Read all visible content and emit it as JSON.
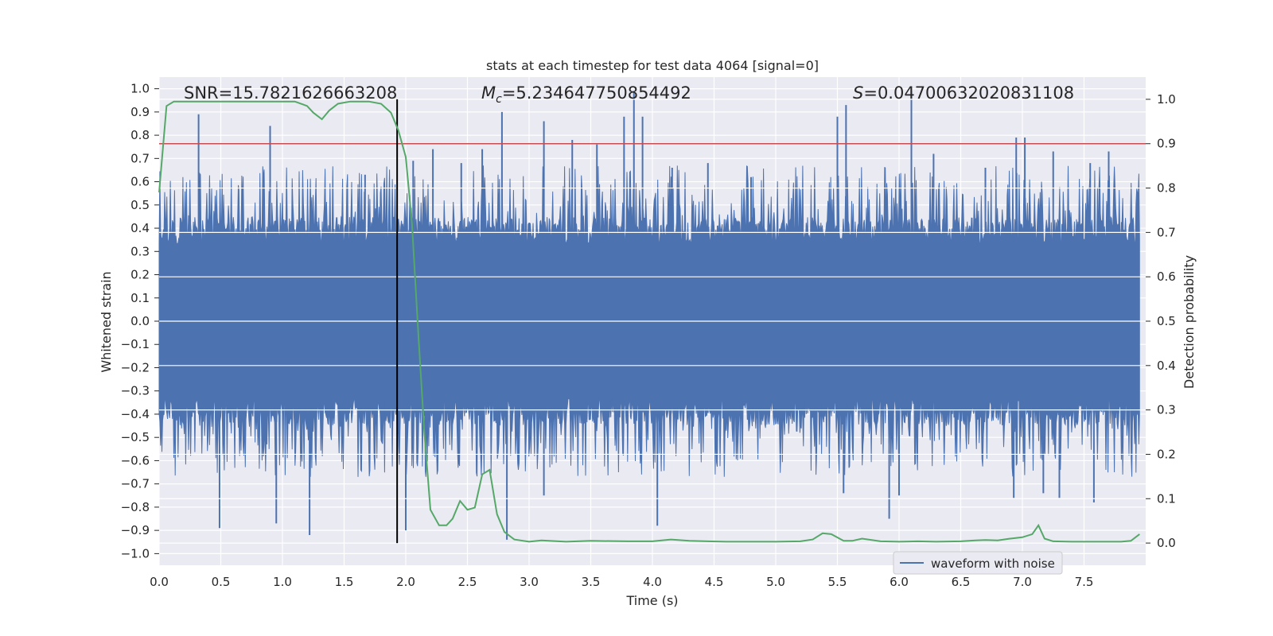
{
  "chart_data": {
    "type": "line",
    "title": "stats at each timestep for test data 4064 [signal=0]",
    "xlabel": "Time (s)",
    "ylabel_left": "Whitened strain",
    "ylabel_right": "Detection probability",
    "xlim": [
      0.0,
      8.0
    ],
    "ylim_left": [
      -1.05,
      1.05
    ],
    "ylim_right": [
      -0.05,
      1.05
    ],
    "xticks": [
      "0.0",
      "0.5",
      "1.0",
      "1.5",
      "2.0",
      "2.5",
      "3.0",
      "3.5",
      "4.0",
      "4.5",
      "5.0",
      "5.5",
      "6.0",
      "6.5",
      "7.0",
      "7.5"
    ],
    "yticks_left": [
      "1.0",
      "0.9",
      "0.8",
      "0.7",
      "0.6",
      "0.5",
      "0.4",
      "0.3",
      "0.2",
      "0.1",
      "0.0",
      "-0.1",
      "-0.2",
      "-0.3",
      "-0.4",
      "-0.5",
      "-0.6",
      "-0.7",
      "-0.8",
      "-0.9",
      "-1.0"
    ],
    "yticks_right": [
      "1.0",
      "0.9",
      "0.8",
      "0.7",
      "0.6",
      "0.5",
      "0.4",
      "0.3",
      "0.2",
      "0.1",
      "0.0"
    ],
    "annotations": {
      "snr": "SNR=15.7821626663208",
      "mc_symbol": "M",
      "mc_sub": "c",
      "mc_value": "=5.234647750854492",
      "s_symbol": "S",
      "s_value": "=0.04700632020831108"
    },
    "threshold_probability": 0.9,
    "detection_time": 1.93,
    "legend": {
      "label": "waveform with noise",
      "placement": "lower-right"
    },
    "colors": {
      "waveform": "#4c72b0",
      "probability": "#55a868",
      "threshold": "#c44e52",
      "marker": "#000000",
      "background": "#eaeaf2",
      "grid": "#ffffff"
    },
    "waveform": {
      "envelope": 0.4,
      "peaks": [
        {
          "t": 0.32,
          "v": 0.89
        },
        {
          "t": 0.9,
          "v": 0.84
        },
        {
          "t": 1.67,
          "v": 0.63
        },
        {
          "t": 2.06,
          "v": 0.69
        },
        {
          "t": 2.22,
          "v": 0.74
        },
        {
          "t": 2.45,
          "v": 0.68
        },
        {
          "t": 2.62,
          "v": 0.74
        },
        {
          "t": 2.78,
          "v": 0.9
        },
        {
          "t": 3.12,
          "v": 0.86
        },
        {
          "t": 3.35,
          "v": 0.78
        },
        {
          "t": 3.55,
          "v": 0.76
        },
        {
          "t": 3.77,
          "v": 0.88
        },
        {
          "t": 3.85,
          "v": 0.99
        },
        {
          "t": 3.92,
          "v": 0.88
        },
        {
          "t": 4.16,
          "v": 0.66
        },
        {
          "t": 4.45,
          "v": 0.68
        },
        {
          "t": 4.8,
          "v": 0.62
        },
        {
          "t": 5.5,
          "v": 0.88
        },
        {
          "t": 5.57,
          "v": 0.93
        },
        {
          "t": 6.1,
          "v": 0.99
        },
        {
          "t": 6.28,
          "v": 0.72
        },
        {
          "t": 6.7,
          "v": 0.66
        },
        {
          "t": 6.95,
          "v": 0.79
        },
        {
          "t": 7.02,
          "v": 0.79
        },
        {
          "t": 7.25,
          "v": 0.73
        },
        {
          "t": 7.55,
          "v": 0.68
        },
        {
          "t": 7.7,
          "v": 0.73
        }
      ],
      "troughs": [
        {
          "t": 0.49,
          "v": -0.89
        },
        {
          "t": 0.95,
          "v": -0.87
        },
        {
          "t": 1.22,
          "v": -0.92
        },
        {
          "t": 2.0,
          "v": -0.9
        },
        {
          "t": 2.82,
          "v": -0.94
        },
        {
          "t": 3.12,
          "v": -0.75
        },
        {
          "t": 4.04,
          "v": -0.88
        },
        {
          "t": 5.55,
          "v": -0.74
        },
        {
          "t": 5.92,
          "v": -0.85
        },
        {
          "t": 6.0,
          "v": -0.75
        },
        {
          "t": 6.93,
          "v": -0.76
        },
        {
          "t": 7.17,
          "v": -0.74
        },
        {
          "t": 7.3,
          "v": -0.76
        },
        {
          "t": 7.58,
          "v": -0.78
        }
      ]
    },
    "detection_probability": {
      "t": [
        0.0,
        0.06,
        0.12,
        0.2,
        0.4,
        0.8,
        1.1,
        1.2,
        1.25,
        1.32,
        1.38,
        1.45,
        1.55,
        1.7,
        1.8,
        1.88,
        1.94,
        2.0,
        2.05,
        2.1,
        2.15,
        2.2,
        2.27,
        2.33,
        2.38,
        2.44,
        2.5,
        2.56,
        2.62,
        2.68,
        2.74,
        2.8,
        2.88,
        3.0,
        3.1,
        3.3,
        3.5,
        3.8,
        4.0,
        4.15,
        4.3,
        4.6,
        5.0,
        5.2,
        5.3,
        5.38,
        5.45,
        5.55,
        5.62,
        5.7,
        5.85,
        6.0,
        6.15,
        6.3,
        6.5,
        6.62,
        6.7,
        6.8,
        6.9,
        7.0,
        7.08,
        7.13,
        7.18,
        7.25,
        7.4,
        7.6,
        7.8,
        7.88,
        7.95
      ],
      "p": [
        0.79,
        0.985,
        0.995,
        0.995,
        0.995,
        0.995,
        0.995,
        0.985,
        0.97,
        0.955,
        0.975,
        0.99,
        0.995,
        0.995,
        0.99,
        0.97,
        0.93,
        0.87,
        0.72,
        0.48,
        0.25,
        0.075,
        0.04,
        0.04,
        0.055,
        0.095,
        0.075,
        0.08,
        0.155,
        0.165,
        0.065,
        0.025,
        0.008,
        0.003,
        0.006,
        0.003,
        0.005,
        0.004,
        0.004,
        0.008,
        0.005,
        0.003,
        0.003,
        0.004,
        0.008,
        0.022,
        0.02,
        0.005,
        0.005,
        0.01,
        0.004,
        0.003,
        0.004,
        0.003,
        0.004,
        0.006,
        0.007,
        0.006,
        0.01,
        0.013,
        0.02,
        0.04,
        0.01,
        0.004,
        0.003,
        0.003,
        0.003,
        0.005,
        0.02
      ]
    }
  }
}
